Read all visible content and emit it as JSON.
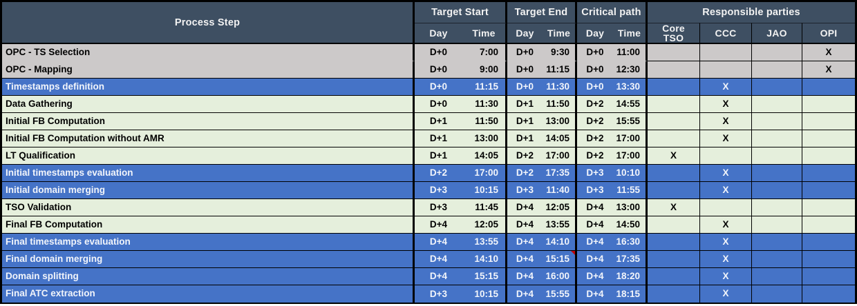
{
  "table": {
    "header": {
      "process_step": "Process Step",
      "target_start": "Target Start",
      "target_end": "Target End",
      "critical_path": "Critical path",
      "responsible_parties": "Responsible parties",
      "day_label": "Day",
      "time_label": "Time",
      "parties": {
        "core_tso": "Core TSO",
        "ccc": "CCC",
        "jao": "JAO",
        "opi": "OPI"
      }
    },
    "rows": [
      {
        "step": "OPC - TS Selection",
        "style": "gray",
        "ts_day": "D+0",
        "ts_time": "7:00",
        "te_day": "D+0",
        "te_time": "9:30",
        "cp_day": "D+0",
        "cp_time": "11:00",
        "core_tso": "",
        "ccc": "",
        "jao": "",
        "opi": "X",
        "comment_marker": false
      },
      {
        "step": "OPC - Mapping",
        "style": "gray",
        "ts_day": "D+0",
        "ts_time": "9:00",
        "te_day": "D+0",
        "te_time": "11:15",
        "cp_day": "D+0",
        "cp_time": "12:30",
        "core_tso": "",
        "ccc": "",
        "jao": "",
        "opi": "X",
        "comment_marker": false
      },
      {
        "step": "Timestamps definition",
        "style": "blue",
        "ts_day": "D+0",
        "ts_time": "11:15",
        "te_day": "D+0",
        "te_time": "11:30",
        "cp_day": "D+0",
        "cp_time": "13:30",
        "core_tso": "",
        "ccc": "X",
        "jao": "",
        "opi": "",
        "comment_marker": false
      },
      {
        "step": "Data Gathering",
        "style": "green",
        "ts_day": "D+0",
        "ts_time": "11:30",
        "te_day": "D+1",
        "te_time": "11:50",
        "cp_day": "D+2",
        "cp_time": "14:55",
        "core_tso": "",
        "ccc": "X",
        "jao": "",
        "opi": "",
        "comment_marker": false
      },
      {
        "step": "Initial FB Computation",
        "style": "green",
        "ts_day": "D+1",
        "ts_time": "11:50",
        "te_day": "D+1",
        "te_time": "13:00",
        "cp_day": "D+2",
        "cp_time": "15:55",
        "core_tso": "",
        "ccc": "X",
        "jao": "",
        "opi": "",
        "comment_marker": false
      },
      {
        "step": "Initial FB Computation without AMR",
        "style": "green",
        "ts_day": "D+1",
        "ts_time": "13:00",
        "te_day": "D+1",
        "te_time": "14:05",
        "cp_day": "D+2",
        "cp_time": "17:00",
        "core_tso": "",
        "ccc": "X",
        "jao": "",
        "opi": "",
        "comment_marker": false
      },
      {
        "step": "LT Qualification",
        "style": "green",
        "ts_day": "D+1",
        "ts_time": "14:05",
        "te_day": "D+2",
        "te_time": "17:00",
        "cp_day": "D+2",
        "cp_time": "17:00",
        "core_tso": "X",
        "ccc": "",
        "jao": "",
        "opi": "",
        "comment_marker": false
      },
      {
        "step": "Initial timestamps evaluation",
        "style": "blue",
        "ts_day": "D+2",
        "ts_time": "17:00",
        "te_day": "D+2",
        "te_time": "17:35",
        "cp_day": "D+3",
        "cp_time": "10:10",
        "core_tso": "",
        "ccc": "X",
        "jao": "",
        "opi": "",
        "comment_marker": false
      },
      {
        "step": "Initial domain merging",
        "style": "blue",
        "ts_day": "D+3",
        "ts_time": "10:15",
        "te_day": "D+3",
        "te_time": "11:40",
        "cp_day": "D+3",
        "cp_time": "11:55",
        "core_tso": "",
        "ccc": "X",
        "jao": "",
        "opi": "",
        "comment_marker": false
      },
      {
        "step": "TSO Validation",
        "style": "green",
        "ts_day": "D+3",
        "ts_time": "11:45",
        "te_day": "D+4",
        "te_time": "12:05",
        "cp_day": "D+4",
        "cp_time": "13:00",
        "core_tso": "X",
        "ccc": "",
        "jao": "",
        "opi": "",
        "comment_marker": false
      },
      {
        "step": "Final FB Computation",
        "style": "green",
        "ts_day": "D+4",
        "ts_time": "12:05",
        "te_day": "D+4",
        "te_time": "13:55",
        "cp_day": "D+4",
        "cp_time": "14:50",
        "core_tso": "",
        "ccc": "X",
        "jao": "",
        "opi": "",
        "comment_marker": false
      },
      {
        "step": "Final timestamps evaluation",
        "style": "blue",
        "ts_day": "D+4",
        "ts_time": "13:55",
        "te_day": "D+4",
        "te_time": "14:10",
        "cp_day": "D+4",
        "cp_time": "16:30",
        "core_tso": "",
        "ccc": "X",
        "jao": "",
        "opi": "",
        "comment_marker": false
      },
      {
        "step": "Final domain merging",
        "style": "blue",
        "ts_day": "D+4",
        "ts_time": "14:10",
        "te_day": "D+4",
        "te_time": "15:15",
        "cp_day": "D+4",
        "cp_time": "17:35",
        "core_tso": "",
        "ccc": "X",
        "jao": "",
        "opi": "",
        "comment_marker": true
      },
      {
        "step": "Domain splitting",
        "style": "blue",
        "ts_day": "D+4",
        "ts_time": "15:15",
        "te_day": "D+4",
        "te_time": "16:00",
        "cp_day": "D+4",
        "cp_time": "18:20",
        "core_tso": "",
        "ccc": "X",
        "jao": "",
        "opi": "",
        "comment_marker": false
      },
      {
        "step": "Final ATC extraction",
        "style": "blue",
        "ts_day": "D+3",
        "ts_time": "10:15",
        "te_day": "D+4",
        "te_time": "15:55",
        "cp_day": "D+4",
        "cp_time": "18:15",
        "core_tso": "",
        "ccc": "X",
        "jao": "",
        "opi": "",
        "comment_marker": false
      }
    ]
  },
  "colors": {
    "header_bg": "#3E4F62",
    "gray_row": "#CCC9C9",
    "blue_row": "#4573C7",
    "green_row": "#E5EFDC",
    "blue_row_text": "#F2F5FB",
    "comment_flag": "#C00000",
    "border": "#000000"
  }
}
